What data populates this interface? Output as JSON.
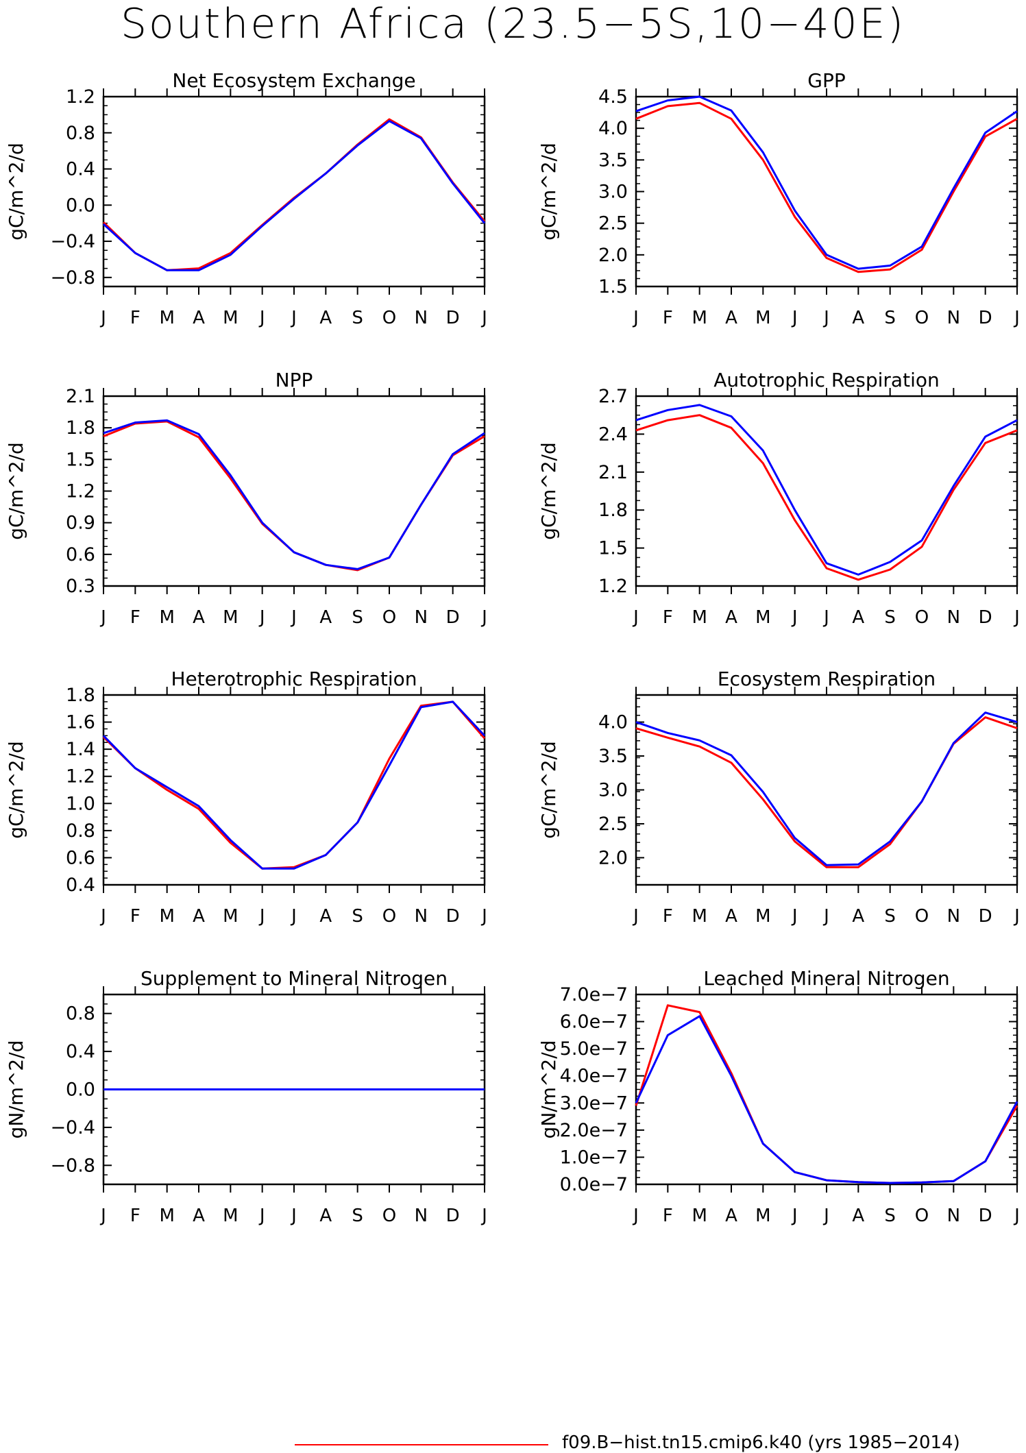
{
  "title": "Southern Africa (23.5−5S,10−40E)",
  "months": [
    "J",
    "F",
    "M",
    "A",
    "M",
    "J",
    "J",
    "A",
    "S",
    "O",
    "N",
    "D",
    "J"
  ],
  "colors": {
    "series_1": "#ff0000",
    "series_2": "#0000ff"
  },
  "legend": {
    "label": "f09.B−hist.tn15.cmip6.k40 (yrs 1985−2014)"
  },
  "chart_data": [
    {
      "type": "line",
      "title": "Net Ecosystem Exchange",
      "ylabel": "gC/m^2/d",
      "ylim": [
        -0.9,
        1.2
      ],
      "yticks": [
        -0.8,
        -0.4,
        0.0,
        0.4,
        0.8,
        1.2
      ],
      "ytick_labels": [
        "−0.8",
        "−0.4",
        "0.0",
        "0.4",
        "0.8",
        "1.2"
      ],
      "series": [
        {
          "values": [
            -0.19,
            -0.53,
            -0.72,
            -0.7,
            -0.53,
            -0.22,
            0.08,
            0.35,
            0.67,
            0.95,
            0.75,
            0.25,
            -0.18
          ]
        },
        {
          "values": [
            -0.21,
            -0.53,
            -0.72,
            -0.72,
            -0.55,
            -0.23,
            0.07,
            0.35,
            0.66,
            0.93,
            0.74,
            0.24,
            -0.2
          ]
        }
      ]
    },
    {
      "type": "line",
      "title": "GPP",
      "ylabel": "gC/m^2/d",
      "ylim": [
        1.5,
        4.5
      ],
      "yticks": [
        1.5,
        2.0,
        2.5,
        3.0,
        3.5,
        4.0,
        4.5
      ],
      "ytick_labels": [
        "1.5",
        "2.0",
        "2.5",
        "3.0",
        "3.5",
        "4.0",
        "4.5"
      ],
      "series": [
        {
          "values": [
            4.15,
            4.35,
            4.4,
            4.15,
            3.5,
            2.6,
            1.95,
            1.73,
            1.77,
            2.08,
            3.0,
            3.87,
            4.15
          ]
        },
        {
          "values": [
            4.27,
            4.44,
            4.5,
            4.28,
            3.62,
            2.7,
            2.0,
            1.78,
            1.83,
            2.13,
            3.05,
            3.93,
            4.27
          ]
        }
      ]
    },
    {
      "type": "line",
      "title": "NPP",
      "ylabel": "gC/m^2/d",
      "ylim": [
        0.3,
        2.1
      ],
      "yticks": [
        0.3,
        0.6,
        0.9,
        1.2,
        1.5,
        1.8,
        2.1
      ],
      "ytick_labels": [
        "0.3",
        "0.6",
        "0.9",
        "1.2",
        "1.5",
        "1.8",
        "2.1"
      ],
      "series": [
        {
          "values": [
            1.72,
            1.84,
            1.86,
            1.71,
            1.32,
            0.89,
            0.62,
            0.5,
            0.45,
            0.57,
            1.07,
            1.54,
            1.72
          ]
        },
        {
          "values": [
            1.75,
            1.85,
            1.87,
            1.74,
            1.35,
            0.9,
            0.62,
            0.5,
            0.46,
            0.57,
            1.07,
            1.55,
            1.75
          ]
        }
      ]
    },
    {
      "type": "line",
      "title": "Autotrophic Respiration",
      "ylabel": "gC/m^2/d",
      "ylim": [
        1.2,
        2.7
      ],
      "yticks": [
        1.2,
        1.5,
        1.8,
        2.1,
        2.4,
        2.7
      ],
      "ytick_labels": [
        "1.2",
        "1.5",
        "1.8",
        "2.1",
        "2.4",
        "2.7"
      ],
      "series": [
        {
          "values": [
            2.43,
            2.51,
            2.55,
            2.45,
            2.17,
            1.72,
            1.34,
            1.25,
            1.33,
            1.51,
            1.96,
            2.33,
            2.43
          ]
        },
        {
          "values": [
            2.51,
            2.59,
            2.63,
            2.54,
            2.27,
            1.8,
            1.38,
            1.29,
            1.39,
            1.56,
            1.99,
            2.38,
            2.51
          ]
        }
      ]
    },
    {
      "type": "line",
      "title": "Heterotrophic Respiration",
      "ylabel": "gC/m^2/d",
      "ylim": [
        0.4,
        1.8
      ],
      "yticks": [
        0.4,
        0.6,
        0.8,
        1.0,
        1.2,
        1.4,
        1.6,
        1.8
      ],
      "ytick_labels": [
        "0.4",
        "0.6",
        "0.8",
        "1.0",
        "1.2",
        "1.4",
        "1.6",
        "1.8"
      ],
      "series": [
        {
          "values": [
            1.49,
            1.26,
            1.1,
            0.96,
            0.71,
            0.52,
            0.53,
            0.62,
            0.86,
            1.33,
            1.72,
            1.75,
            1.48
          ]
        },
        {
          "values": [
            1.5,
            1.26,
            1.12,
            0.98,
            0.73,
            0.52,
            0.52,
            0.62,
            0.86,
            1.28,
            1.71,
            1.75,
            1.5
          ]
        }
      ]
    },
    {
      "type": "line",
      "title": "Ecosystem Respiration",
      "ylabel": "gC/m^2/d",
      "ylim": [
        1.6,
        4.4
      ],
      "yticks": [
        2.0,
        2.5,
        3.0,
        3.5,
        4.0
      ],
      "ytick_labels": [
        "2.0",
        "2.5",
        "3.0",
        "3.5",
        "4.0"
      ],
      "series": [
        {
          "values": [
            3.91,
            3.77,
            3.64,
            3.4,
            2.86,
            2.24,
            1.86,
            1.86,
            2.2,
            2.83,
            3.68,
            4.07,
            3.91
          ]
        },
        {
          "values": [
            4.0,
            3.84,
            3.73,
            3.51,
            2.97,
            2.29,
            1.89,
            1.9,
            2.24,
            2.83,
            3.69,
            4.14,
            4.0
          ]
        }
      ]
    },
    {
      "type": "line",
      "title": "Supplement to Mineral Nitrogen",
      "ylabel": "gN/m^2/d",
      "ylim": [
        -1.0,
        1.0
      ],
      "yticks": [
        -0.8,
        -0.4,
        0.0,
        0.4,
        0.8
      ],
      "ytick_labels": [
        "−0.8",
        "−0.4",
        "0.0",
        "0.4",
        "0.8"
      ],
      "series": [
        {
          "values": [
            0,
            0,
            0,
            0,
            0,
            0,
            0,
            0,
            0,
            0,
            0,
            0,
            0
          ]
        },
        {
          "values": [
            0,
            0,
            0,
            0,
            0,
            0,
            0,
            0,
            0,
            0,
            0,
            0,
            0
          ]
        }
      ]
    },
    {
      "type": "line",
      "title": "Leached Mineral Nitrogen",
      "ylabel": "gN/m^2/d",
      "ylim": [
        0.0,
        7e-07
      ],
      "yticks": [
        0.0,
        1e-07,
        2e-07,
        3e-07,
        4e-07,
        5e-07,
        6e-07,
        7e-07
      ],
      "ytick_labels": [
        "0.0e−7",
        "1.0e−7",
        "2.0e−7",
        "3.0e−7",
        "4.0e−7",
        "5.0e−7",
        "6.0e−7",
        "7.0e−7"
      ],
      "series": [
        {
          "values": [
            2.9e-07,
            6.6e-07,
            6.35e-07,
            4.1e-07,
            1.5e-07,
            4.5e-08,
            1.5e-08,
            8e-09,
            5e-09,
            7e-09,
            1.2e-08,
            8.5e-08,
            2.9e-07
          ]
        },
        {
          "values": [
            3e-07,
            5.5e-07,
            6.2e-07,
            4e-07,
            1.5e-07,
            4.5e-08,
            1.5e-08,
            8e-09,
            5e-09,
            7e-09,
            1.2e-08,
            8.5e-08,
            3.05e-07
          ]
        }
      ]
    }
  ]
}
